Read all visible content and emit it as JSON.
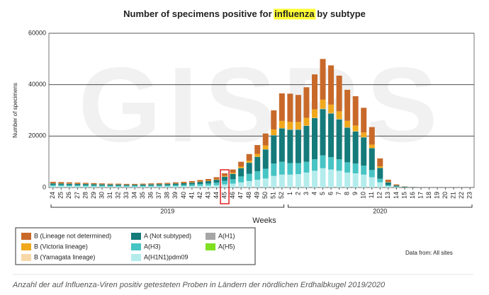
{
  "chart_data": {
    "type": "stacked_bar",
    "title_prefix": "Number of specimens positive for",
    "title_highlight": "influenza",
    "title_suffix": "by subtype",
    "watermark": "GISRS",
    "y_label": "Number of specimens",
    "x_label": "Weeks",
    "years": [
      "2019",
      "2020"
    ],
    "source_note": "Data from: All sites",
    "caption": "Anzahl der auf Influenza-Viren positiv getesteten Proben in Ländern der nördlichen Erdhalbkugel 2019/2020",
    "ylim": [
      0,
      60000
    ],
    "yticks": [
      0,
      20000,
      40000,
      60000
    ],
    "grid": true,
    "highlight_category": "45",
    "categories": [
      "24",
      "25",
      "26",
      "27",
      "28",
      "29",
      "30",
      "31",
      "32",
      "33",
      "34",
      "35",
      "36",
      "37",
      "38",
      "39",
      "40",
      "41",
      "42",
      "43",
      "44",
      "45",
      "46",
      "47",
      "48",
      "49",
      "50",
      "51",
      "52",
      "1",
      "2",
      "3",
      "4",
      "5",
      "6",
      "7",
      "8",
      "9",
      "10",
      "11",
      "12",
      "13",
      "14",
      "15",
      "16",
      "17",
      "18",
      "19",
      "20",
      "21",
      "22",
      "23"
    ],
    "series": [
      {
        "name": "B (Lineage not determined)",
        "color": "#c8692a",
        "values": [
          500,
          450,
          450,
          400,
          360,
          340,
          320,
          300,
          300,
          280,
          280,
          300,
          320,
          340,
          360,
          400,
          440,
          500,
          580,
          660,
          800,
          990,
          1280,
          1870,
          2560,
          3450,
          4640,
          7420,
          10700,
          11000,
          10500,
          11900,
          13580,
          15850,
          15250,
          13870,
          12080,
          11390,
          9600,
          6820,
          3060,
          840,
          340,
          110,
          50,
          25,
          25,
          25,
          25,
          25,
          25,
          25
        ]
      },
      {
        "name": "B (Victoria lineage)",
        "color": "#f0a81c",
        "values": [
          100,
          100,
          100,
          100,
          90,
          80,
          80,
          75,
          75,
          70,
          70,
          75,
          80,
          80,
          90,
          100,
          110,
          130,
          150,
          170,
          200,
          300,
          400,
          600,
          800,
          1100,
          1500,
          2200,
          2800,
          2900,
          2900,
          3000,
          3300,
          3500,
          3300,
          3000,
          2500,
          2200,
          1800,
          1300,
          600,
          150,
          60,
          20,
          10,
          5,
          5,
          5,
          5,
          5,
          5,
          5
        ]
      },
      {
        "name": "B (Yamagata lineage)",
        "color": "#f8d8a8",
        "values": [
          0,
          0,
          0,
          0,
          0,
          0,
          0,
          0,
          0,
          0,
          0,
          0,
          0,
          0,
          0,
          0,
          0,
          0,
          0,
          0,
          0,
          10,
          20,
          30,
          40,
          50,
          60,
          80,
          100,
          100,
          100,
          100,
          120,
          150,
          150,
          130,
          120,
          110,
          100,
          80,
          40,
          10,
          0,
          0,
          0,
          0,
          0,
          0,
          0,
          0,
          0,
          0
        ]
      },
      {
        "name": "A (Not subtyped)",
        "color": "#157a7a",
        "values": [
          600,
          550,
          550,
          500,
          500,
          480,
          450,
          420,
          420,
          390,
          390,
          420,
          450,
          480,
          500,
          560,
          620,
          700,
          810,
          920,
          1120,
          1600,
          2100,
          3200,
          4300,
          5600,
          7500,
          11000,
          13000,
          13000,
          13000,
          14000,
          16000,
          18000,
          17000,
          15500,
          13500,
          12500,
          11000,
          8500,
          4200,
          1100,
          450,
          150,
          70,
          35,
          35,
          35,
          35,
          35,
          35,
          35
        ]
      },
      {
        "name": "A(H3)",
        "color": "#47c4c4",
        "values": [
          500,
          500,
          450,
          450,
          450,
          430,
          400,
          375,
          375,
          350,
          350,
          375,
          400,
          430,
          450,
          500,
          550,
          620,
          720,
          820,
          1000,
          1400,
          1700,
          2300,
          2800,
          3300,
          3800,
          4800,
          5000,
          4500,
          4300,
          4200,
          4500,
          5000,
          4800,
          4500,
          4000,
          3800,
          3500,
          2800,
          1400,
          400,
          150,
          50,
          30,
          15,
          15,
          15,
          15,
          15,
          15,
          15
        ]
      },
      {
        "name": "A(H1N1)pdm09",
        "color": "#b4ecec",
        "values": [
          500,
          500,
          450,
          450,
          400,
          370,
          350,
          330,
          330,
          310,
          310,
          330,
          350,
          370,
          400,
          440,
          480,
          550,
          640,
          730,
          880,
          1200,
          1500,
          2000,
          2500,
          3000,
          3500,
          4500,
          5000,
          5000,
          5200,
          5800,
          6500,
          7500,
          7000,
          6500,
          5800,
          5500,
          5000,
          4000,
          2000,
          500,
          200,
          70,
          40,
          20,
          20,
          20,
          20,
          20,
          20,
          20
        ]
      },
      {
        "name": "A(H1)",
        "color": "#a6a6a6",
        "values": [
          0,
          0,
          0,
          0,
          0,
          0,
          0,
          0,
          0,
          0,
          0,
          0,
          0,
          0,
          0,
          0,
          0,
          0,
          0,
          0,
          0,
          0,
          0,
          0,
          0,
          0,
          0,
          0,
          0,
          0,
          0,
          0,
          0,
          0,
          0,
          0,
          0,
          0,
          0,
          0,
          0,
          0,
          0,
          0,
          0,
          0,
          0,
          0,
          0,
          0,
          0,
          0
        ]
      },
      {
        "name": "A(H5)",
        "color": "#7ee020",
        "values": [
          0,
          0,
          0,
          0,
          0,
          0,
          0,
          0,
          0,
          0,
          0,
          0,
          0,
          0,
          0,
          0,
          0,
          0,
          0,
          0,
          0,
          0,
          0,
          0,
          0,
          0,
          0,
          0,
          0,
          0,
          0,
          0,
          0,
          0,
          0,
          0,
          0,
          0,
          0,
          0,
          0,
          0,
          0,
          0,
          0,
          0,
          0,
          0,
          0,
          0,
          0,
          0
        ]
      }
    ]
  }
}
